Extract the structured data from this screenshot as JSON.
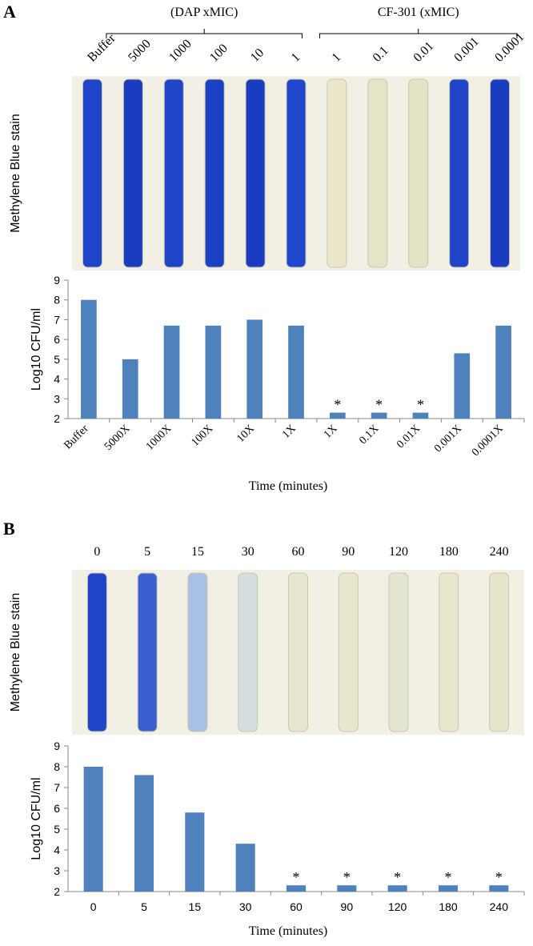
{
  "chart_data": [
    {
      "type": "bar",
      "panel_label": "A",
      "group_labels": [
        "(DAP xMIC)",
        "CF-301 (xMIC)"
      ],
      "tube_labels": [
        "Buffer",
        "5000",
        "1000",
        "100",
        "10",
        "1",
        "1",
        "0.1",
        "0.01",
        "0.001",
        "0.0001"
      ],
      "tube_colors": [
        "#1f44c8",
        "#1a3cc0",
        "#1f44c8",
        "#1c40c4",
        "#1a3cc0",
        "#1f46cc",
        "#e9e6c9",
        "#e6e4c6",
        "#e4e3c3",
        "#1f44c8",
        "#1a3cc0"
      ],
      "stain_label": "Methylene Blue stain",
      "categories": [
        "Buffer",
        "5000X",
        "1000X",
        "100X",
        "10X",
        "1X",
        "1X",
        "0.1X",
        "0.01X",
        "0.001X",
        "0.0001X"
      ],
      "values": [
        8,
        5,
        6.7,
        6.7,
        7,
        6.7,
        2.3,
        2.3,
        2.3,
        5.3,
        6.7
      ],
      "color": "#4f81bd",
      "ylim": [
        2,
        9
      ],
      "yticks": [
        2,
        3,
        4,
        5,
        6,
        7,
        8,
        9
      ],
      "y_label": "Log10 CFU/ml",
      "x_label": "Time (minutes)",
      "rotate_labels": true,
      "annotations": [
        {
          "text": "*",
          "at": 6
        },
        {
          "text": "*",
          "at": 7
        },
        {
          "text": "*",
          "at": 8
        }
      ]
    },
    {
      "type": "bar",
      "panel_label": "B",
      "tube_labels": [
        "0",
        "5",
        "15",
        "30",
        "60",
        "90",
        "120",
        "180",
        "240"
      ],
      "tube_colors": [
        "#1f44c8",
        "#3a5fd0",
        "#a8c0e4",
        "#d4dde0",
        "#e6e6cf",
        "#e8e6cc",
        "#e3e5d2",
        "#e8e6cc",
        "#e6e4c8"
      ],
      "stain_label": "Methylene Blue stain",
      "categories": [
        "0",
        "5",
        "15",
        "30",
        "60",
        "90",
        "120",
        "180",
        "240"
      ],
      "values": [
        8,
        7.6,
        5.8,
        4.3,
        2.3,
        2.3,
        2.3,
        2.3,
        2.3
      ],
      "color": "#4f81bd",
      "ylim": [
        2,
        9
      ],
      "yticks": [
        2,
        3,
        4,
        5,
        6,
        7,
        8,
        9
      ],
      "y_label": "Log10 CFU/ml",
      "x_label": "Time (minutes)",
      "rotate_labels": false,
      "annotations": [
        {
          "text": "*",
          "at": 4
        },
        {
          "text": "*",
          "at": 5
        },
        {
          "text": "*",
          "at": 6
        },
        {
          "text": "*",
          "at": 7
        },
        {
          "text": "*",
          "at": 8
        }
      ]
    }
  ]
}
